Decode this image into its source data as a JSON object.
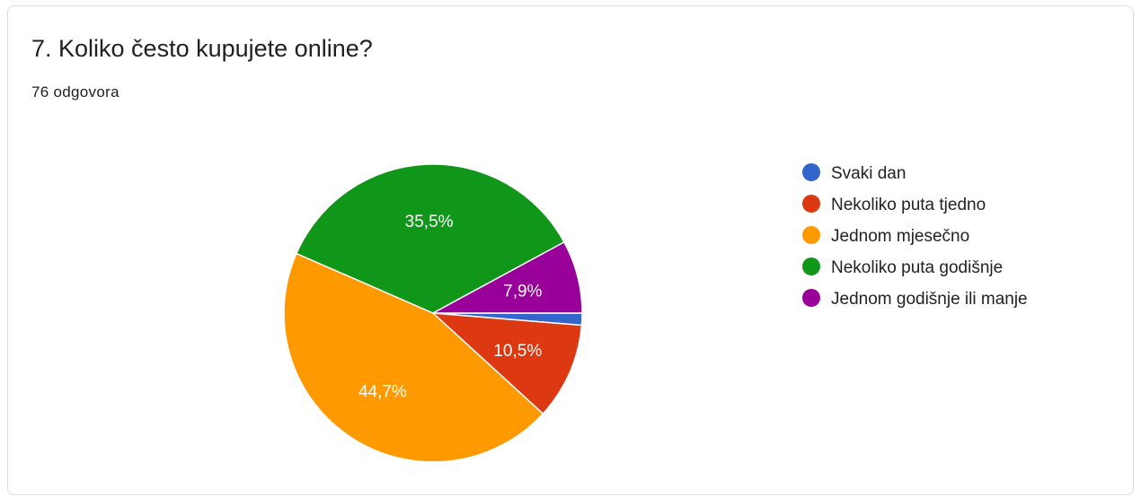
{
  "header": {
    "title": "7. Koliko često kupujete online?",
    "responses": "76 odgovora"
  },
  "chart_data": {
    "type": "pie",
    "legend_position": "right",
    "slices": [
      {
        "label": "Svaki dan",
        "value": 1.3,
        "display": "",
        "color": "#3366cc"
      },
      {
        "label": "Nekoliko puta tjedno",
        "value": 10.5,
        "display": "10,5%",
        "color": "#dc3912"
      },
      {
        "label": "Jednom mjesečno",
        "value": 44.7,
        "display": "44,7%",
        "color": "#ff9900"
      },
      {
        "label": "Nekoliko puta godišnje",
        "value": 35.5,
        "display": "35,5%",
        "color": "#109618"
      },
      {
        "label": "Jednom godišnje ili manje",
        "value": 7.9,
        "display": "7,9%",
        "color": "#990099"
      }
    ]
  }
}
